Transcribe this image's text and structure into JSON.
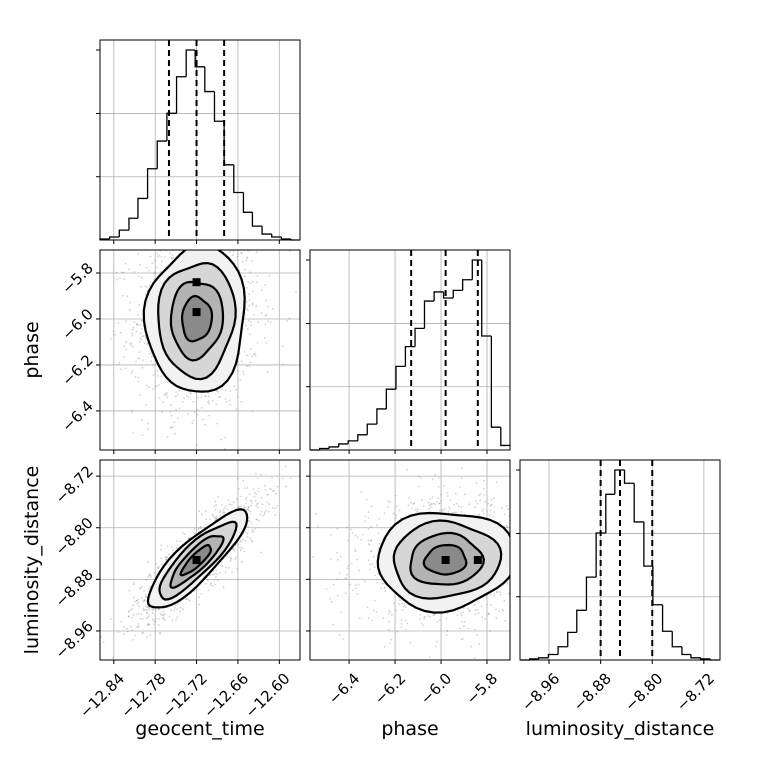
{
  "chart_data": {
    "type": "corner",
    "parameters": [
      "geocent_time",
      "phase",
      "luminosity_distance"
    ],
    "axes": {
      "geocent_time": {
        "label": "geocent_time",
        "range": [
          -12.86,
          -12.57
        ],
        "ticks": [
          -12.84,
          -12.78,
          -12.72,
          -12.66,
          -12.6
        ],
        "tick_labels": [
          "−12.84",
          "−12.78",
          "−12.72",
          "−12.66",
          "−12.60"
        ]
      },
      "phase": {
        "label": "phase",
        "range": [
          -6.57,
          -5.7
        ],
        "ticks": [
          -6.4,
          -6.2,
          -6.0,
          -5.8
        ],
        "tick_labels": [
          "−6.4",
          "−6.2",
          "−6.0",
          "−5.8"
        ]
      },
      "luminosity_distance": {
        "label": "luminosity_distance",
        "range": [
          -9.005,
          -8.695
        ],
        "ticks": [
          -8.96,
          -8.88,
          -8.8,
          -8.72
        ],
        "tick_labels": [
          "−8.96",
          "−8.88",
          "−8.80",
          "−8.72"
        ]
      }
    },
    "grid": true,
    "histograms": {
      "geocent_time": {
        "bin_edges": [
          -12.86,
          -12.846,
          -12.832,
          -12.818,
          -12.805,
          -12.791,
          -12.777,
          -12.763,
          -12.749,
          -12.735,
          -12.722,
          -12.708,
          -12.694,
          -12.68,
          -12.666,
          -12.652,
          -12.639,
          -12.625,
          -12.611,
          -12.597,
          -12.583,
          -12.57
        ],
        "counts": [
          1,
          3,
          10,
          22,
          42,
          72,
          100,
          128,
          165,
          192,
          175,
          150,
          120,
          76,
          48,
          28,
          14,
          6,
          3,
          1,
          0
        ],
        "quantiles": [
          -12.76,
          -12.72,
          -12.68
        ]
      },
      "phase": {
        "bin_edges": [
          -6.57,
          -6.528,
          -6.487,
          -6.445,
          -6.404,
          -6.362,
          -6.321,
          -6.279,
          -6.238,
          -6.196,
          -6.155,
          -6.113,
          -6.072,
          -6.03,
          -5.989,
          -5.947,
          -5.906,
          -5.864,
          -5.823,
          -5.781,
          -5.74,
          -5.7
        ],
        "counts": [
          0,
          1,
          2,
          4,
          6,
          10,
          17,
          27,
          40,
          55,
          68,
          80,
          98,
          104,
          100,
          105,
          112,
          125,
          75,
          15,
          3
        ],
        "quantiles": [
          -6.13,
          -5.98,
          -5.84
        ]
      },
      "luminosity_distance": {
        "bin_edges": [
          -9.005,
          -8.99,
          -8.976,
          -8.961,
          -8.946,
          -8.931,
          -8.917,
          -8.902,
          -8.887,
          -8.872,
          -8.858,
          -8.843,
          -8.828,
          -8.813,
          -8.799,
          -8.784,
          -8.769,
          -8.754,
          -8.74,
          -8.725,
          -8.71,
          -8.695
        ],
        "counts": [
          0,
          1,
          2,
          5,
          12,
          25,
          45,
          75,
          115,
          150,
          172,
          160,
          125,
          85,
          50,
          26,
          12,
          5,
          2,
          1,
          0
        ],
        "quantiles": [
          -8.88,
          -8.85,
          -8.8
        ]
      }
    },
    "joint": {
      "phase|geocent_time": {
        "mean": [
          -12.72,
          -6.0
        ],
        "std": [
          0.036,
          0.16
        ],
        "correlation": 0.05,
        "peaks": [
          [
            -12.72,
            -5.84
          ],
          [
            -12.72,
            -5.97
          ]
        ]
      },
      "luminosity_distance|geocent_time": {
        "mean": [
          -12.72,
          -8.85
        ],
        "std": [
          0.036,
          0.038
        ],
        "correlation": 0.85,
        "peaks": [
          [
            -12.72,
            -8.85
          ]
        ]
      },
      "luminosity_distance|phase": {
        "mean": [
          -5.98,
          -8.85
        ],
        "std": [
          0.15,
          0.038
        ],
        "correlation": 0.05,
        "peaks": [
          [
            -5.84,
            -8.85
          ],
          [
            -5.98,
            -8.85
          ]
        ]
      }
    },
    "colors": {
      "line": "#000000",
      "grid": "#b0b0b0",
      "points": "#808080"
    }
  }
}
